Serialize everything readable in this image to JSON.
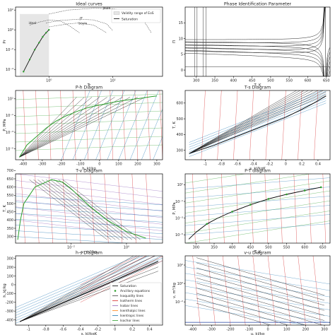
{
  "chart_data": [
    {
      "type": "line",
      "title": "Ideal curves",
      "xlabel": "Tr",
      "ylabel": "Pr",
      "xscale": "log",
      "yscale": "log",
      "xlim": [
        0.3,
        60
      ],
      "ylim": [
        2e-05,
        200
      ],
      "xticks": [
        {
          "v": 1,
          "label": "10⁰"
        },
        {
          "v": 10,
          "label": "10¹"
        }
      ],
      "yticks": [
        {
          "v": 100,
          "label": "10²"
        },
        {
          "v": 1,
          "label": "10⁰"
        },
        {
          "v": 0.01,
          "label": "10⁻²"
        },
        {
          "v": 0.0001,
          "label": "10⁻⁴"
        }
      ],
      "legend": {
        "placement": "top-right",
        "entries": [
          "Validity range of EoS",
          "Saturation"
        ]
      },
      "annotations": [
        "joule",
        "ideal",
        "JT",
        "boyle"
      ],
      "validity_region": {
        "x": [
          0.35,
          1.0
        ],
        "y": [
          2e-05,
          40
        ]
      },
      "saturation": {
        "x": [
          0.4,
          0.5,
          0.6,
          0.7,
          0.8,
          0.9,
          1.0
        ],
        "y": [
          6e-05,
          0.001,
          0.01,
          0.05,
          0.2,
          0.5,
          1.0
        ]
      },
      "curves": [
        {
          "label": "joule",
          "x": [
            1.0,
            2.0,
            5.0,
            10.0,
            20.0,
            30.0,
            40.0
          ],
          "y": [
            40,
            100,
            150,
            140,
            60,
            10,
            0.5
          ]
        },
        {
          "label": "ideal",
          "x": [
            0.5,
            0.7,
            1.0,
            1.5,
            2.0,
            3.0
          ],
          "y": [
            3,
            6,
            10,
            8,
            3,
            0.5
          ]
        },
        {
          "label": "JT",
          "x": [
            0.9,
            1.5,
            3.0,
            5.0,
            8.0,
            10.0
          ],
          "y": [
            5,
            9,
            12,
            10,
            4,
            0.8
          ]
        },
        {
          "label": "boyle",
          "x": [
            1.0,
            2.0,
            3.0,
            5.0,
            8.0
          ],
          "y": [
            2,
            4,
            5,
            3,
            0.5
          ]
        }
      ]
    },
    {
      "type": "line",
      "title": "Phase Identification Parameter",
      "xlabel": "T, K",
      "ylabel": "Π",
      "xlim": [
        270,
        660
      ],
      "ylim": [
        -2,
        20
      ],
      "xticks": [
        300,
        350,
        400,
        450,
        500,
        550,
        600,
        650
      ],
      "yticks": [
        0,
        5,
        10,
        15
      ],
      "singularity_T": 648,
      "curve_count": 10
    },
    {
      "type": "line",
      "title": "P-h Diagram",
      "xlabel": "h, kJ/kg",
      "ylabel": "P, MPa",
      "yscale": "log",
      "xlim": [
        -440,
        330
      ],
      "ylim": [
        5e-07,
        100
      ],
      "xticks": [
        -400,
        -300,
        -200,
        -100,
        0,
        100,
        200,
        300
      ],
      "yticks": [
        {
          "v": 10,
          "label": "10¹"
        },
        {
          "v": 0.1,
          "label": "10⁻¹"
        },
        {
          "v": 0.001,
          "label": "10⁻³"
        },
        {
          "v": 1e-05,
          "label": "10⁻⁵"
        }
      ],
      "saturation": {
        "x": [
          -420,
          -380,
          -330,
          -280,
          -230,
          -180,
          -120,
          -60,
          0,
          60,
          120,
          180,
          230,
          270,
          300
        ],
        "y": [
          1e-06,
          3e-05,
          0.0003,
          0.003,
          0.02,
          0.08,
          0.3,
          0.9,
          1.8,
          3.5,
          6,
          9,
          13,
          18,
          22
        ]
      }
    },
    {
      "type": "line",
      "title": "T-s Diagram",
      "xlabel": "s, kJ/kgK",
      "ylabel": "T, K",
      "xlim": [
        -1.25,
        0.55
      ],
      "ylim": [
        240,
        680
      ],
      "xticks": [
        -1.0,
        -0.8,
        -0.6,
        -0.4,
        -0.2,
        0.0,
        0.2,
        0.4
      ],
      "yticks": [
        300,
        400,
        500,
        600
      ],
      "saturation": {
        "x": [
          -1.2,
          -0.9,
          -0.6,
          -0.3,
          0.0,
          0.2,
          0.35,
          0.45,
          0.5
        ],
        "y": [
          280,
          330,
          390,
          450,
          510,
          560,
          600,
          630,
          645
        ]
      }
    },
    {
      "type": "line",
      "title": "T-v Diagram",
      "xlabel": "v, m³/kg",
      "ylabel": "T, K",
      "xscale": "log",
      "xlim": [
        0.0001,
        20
      ],
      "ylim": [
        260,
        680
      ],
      "xticks": [
        {
          "v": 0.01,
          "label": "10⁻²"
        },
        {
          "v": 1,
          "label": "10⁰"
        }
      ],
      "yticks": [
        300,
        350,
        400,
        450,
        500,
        550,
        600,
        650,
        700
      ],
      "saturation": {
        "x": [
          0.00012,
          0.00015,
          0.0002,
          0.0005,
          0.002,
          0.005,
          0.01,
          0.05,
          0.2,
          1,
          5
        ],
        "y": [
          280,
          400,
          500,
          600,
          645,
          630,
          590,
          480,
          400,
          330,
          290
        ]
      }
    },
    {
      "type": "line",
      "title": "P-T diagram",
      "xlabel": "T, K",
      "ylabel": "P, MPa",
      "yscale": "log",
      "xlim": [
        270,
        670
      ],
      "ylim": [
        1e-06,
        200
      ],
      "xticks": [
        300,
        350,
        400,
        450,
        500,
        550,
        600,
        650
      ],
      "yticks": [
        {
          "v": 10,
          "label": "10¹"
        },
        {
          "v": 0.1,
          "label": "10⁻¹"
        },
        {
          "v": 0.001,
          "label": "10⁻³"
        },
        {
          "v": 1e-05,
          "label": "10⁻⁵"
        }
      ],
      "saturation": {
        "x": [
          280,
          300,
          330,
          360,
          400,
          450,
          500,
          550,
          600,
          645
        ],
        "y": [
          3e-06,
          2e-05,
          0.0002,
          0.001,
          0.006,
          0.04,
          0.2,
          0.7,
          2,
          5
        ]
      },
      "markers": [
        {
          "x": 330,
          "y": 0.0002
        },
        {
          "x": 400,
          "y": 0.006
        },
        {
          "x": 450,
          "y": 0.04
        },
        {
          "x": 500,
          "y": 0.2
        },
        {
          "x": 550,
          "y": 0.7
        },
        {
          "x": 600,
          "y": 2
        },
        {
          "x": 645,
          "y": 5
        }
      ]
    },
    {
      "type": "line",
      "title": "h-s Diagram",
      "xlabel": "s, kJ/kgK",
      "ylabel": "h, kJ/kg",
      "xlim": [
        -1.15,
        0.55
      ],
      "ylim": [
        -460,
        330
      ],
      "xticks": [
        -1.0,
        -0.8,
        -0.6,
        -0.4,
        -0.2,
        0.0,
        0.2,
        0.4
      ],
      "yticks": [
        -400,
        -300,
        -200,
        -100,
        0,
        100,
        200,
        300
      ],
      "legend": {
        "placement": "lower-right",
        "entries": [
          "Saturation",
          "Ancillary equations",
          "Isoquality lines",
          "Isotherm lines",
          "Isobar lines",
          "Isenthalpic lines",
          "Isentropic lines",
          "Isochor lines"
        ]
      }
    },
    {
      "type": "line",
      "title": "v-u Diagram",
      "xlabel": "u, kJ/kg",
      "ylabel": "v, m³/kg",
      "yscale": "log",
      "xlim": [
        -440,
        330
      ],
      "ylim": [
        3e-05,
        1000
      ],
      "xticks": [
        -400,
        -300,
        -200,
        -100,
        0,
        100,
        200,
        300
      ],
      "yticks": [
        {
          "v": 100,
          "label": "10²"
        },
        {
          "v": 1,
          "label": "10⁰"
        },
        {
          "v": 0.01,
          "label": "10⁻²"
        }
      ]
    }
  ],
  "colors": {
    "saturation": "#111111",
    "ancillary": "#2ca02c",
    "isoquality": "#444444",
    "isotherm": "#d62728",
    "isobar": "#9467bd",
    "isenthalpic": "#ff7f0e",
    "isentropic": "#1f77b4",
    "isochor": "#2ca02c",
    "validity_fill": "#e6e6e6"
  }
}
